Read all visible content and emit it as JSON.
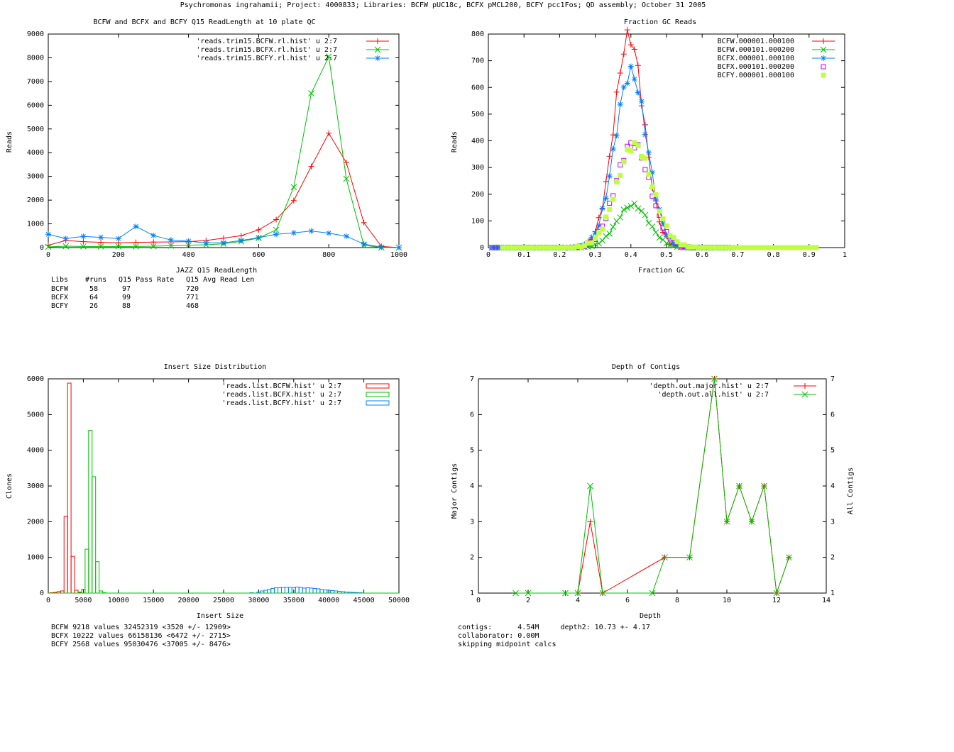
{
  "page_title": "Psychromonas ingrahamii; Project: 4000833; Libraries: BCFW pUC18c, BCFX pMCL200, BCFY pcc1Fos; QD assembly; October 31 2005",
  "colors": {
    "red": "#ff0000",
    "green": "#00c000",
    "blue": "#0080ff",
    "purple": "#c000ff",
    "lime": "#c0ff40"
  },
  "chart_data": [
    {
      "id": "readlen",
      "type": "line",
      "title": "BCFW and BCFX and BCFY Q15 ReadLength at 10 plate QC",
      "xlabel": "JAZZ Q15 ReadLength",
      "ylabel": "Reads",
      "xlim": [
        0,
        1000
      ],
      "ylim": [
        0,
        9000
      ],
      "xticks": [
        0,
        200,
        400,
        600,
        800,
        1000
      ],
      "yticks": [
        0,
        1000,
        2000,
        3000,
        4000,
        5000,
        6000,
        7000,
        8000,
        9000
      ],
      "x": [
        0,
        50,
        100,
        150,
        200,
        250,
        300,
        350,
        400,
        450,
        500,
        550,
        600,
        650,
        700,
        750,
        800,
        850,
        900,
        950,
        1000
      ],
      "series": [
        {
          "name": "'reads.trim15.BCFW.rl.hist' u 2:7",
          "color": "#ff0000",
          "marker": "plus",
          "values": [
            100,
            300,
            250,
            220,
            200,
            220,
            230,
            240,
            250,
            300,
            400,
            500,
            750,
            1180,
            1980,
            3420,
            4820,
            3580,
            1050,
            50,
            0
          ]
        },
        {
          "name": "'reads.trim15.BCFX.rl.hist' u 2:7",
          "color": "#00c000",
          "marker": "x",
          "values": [
            30,
            60,
            50,
            50,
            50,
            50,
            60,
            80,
            100,
            120,
            160,
            260,
            400,
            750,
            2550,
            6500,
            8050,
            2900,
            100,
            0,
            0
          ]
        },
        {
          "name": "'reads.trim15.BCFY.rl.hist' u 2:7",
          "color": "#0080ff",
          "marker": "star",
          "values": [
            560,
            380,
            470,
            430,
            380,
            890,
            510,
            320,
            270,
            200,
            200,
            300,
            420,
            560,
            620,
            700,
            610,
            480,
            150,
            20,
            0
          ]
        }
      ],
      "stats_header": [
        "Libs",
        "#runs",
        "Q15 Pass Rate",
        "Q15 Avg Read Len"
      ],
      "stats_rows": [
        [
          "BCFW",
          "58",
          "97",
          "720"
        ],
        [
          "BCFX",
          "64",
          "99",
          "771"
        ],
        [
          "BCFY",
          "26",
          "88",
          "468"
        ]
      ]
    },
    {
      "id": "gc",
      "type": "scatter",
      "title": "Fraction GC Reads",
      "xlabel": "Fraction GC",
      "ylabel": "Reads",
      "xlim": [
        0,
        1
      ],
      "ylim": [
        0,
        800
      ],
      "xticks": [
        "0",
        "0.1",
        "0.2",
        "0.3",
        "0.4",
        "0.5",
        "0.6",
        "0.7",
        "0.8",
        "0.9",
        "1"
      ],
      "yticks": [
        0,
        100,
        200,
        300,
        400,
        500,
        600,
        700,
        800
      ],
      "series": [
        {
          "name": "BCFW.000001.000100",
          "color": "#ff0000",
          "marker": "plus",
          "peak": 790,
          "center": 0.395,
          "width": 0.042,
          "line": true
        },
        {
          "name": "BCFW.000101.000200",
          "color": "#00c000",
          "marker": "x",
          "peak": 160,
          "center": 0.405,
          "width": 0.045,
          "line": true
        },
        {
          "name": "BCFX.000001.000100",
          "color": "#0080ff",
          "marker": "star",
          "peak": 655,
          "center": 0.4,
          "width": 0.045,
          "line": true
        },
        {
          "name": "BCFX.000101.000200",
          "color": "#c000ff",
          "marker": "box",
          "peak": 390,
          "center": 0.405,
          "width": 0.048,
          "line": false
        },
        {
          "name": "BCFY.000001.000100",
          "color": "#c0ff40",
          "marker": "filled-box",
          "peak": 385,
          "center": 0.41,
          "width": 0.05,
          "line": false
        }
      ]
    },
    {
      "id": "insert",
      "type": "bar",
      "title": "Insert Size Distribution",
      "xlabel": "Insert Size",
      "ylabel": "Clones",
      "xlim": [
        0,
        50000
      ],
      "ylim": [
        0,
        6000
      ],
      "xticks": [
        0,
        5000,
        10000,
        15000,
        20000,
        25000,
        30000,
        35000,
        40000,
        45000,
        50000
      ],
      "yticks": [
        0,
        1000,
        2000,
        3000,
        4000,
        5000,
        6000
      ],
      "series": [
        {
          "name": "'reads.list.BCFW.hist' u 2:7",
          "color": "#ff0000",
          "bins": [
            [
              500,
              10
            ],
            [
              1000,
              20
            ],
            [
              1500,
              40
            ],
            [
              2000,
              60
            ],
            [
              2500,
              2150
            ],
            [
              3000,
              5880
            ],
            [
              3500,
              1030
            ],
            [
              4000,
              80
            ],
            [
              4500,
              10
            ]
          ]
        },
        {
          "name": "'reads.list.BCFX.hist' u 2:7",
          "color": "#00c000",
          "bins": [
            [
              4500,
              30
            ],
            [
              5000,
              110
            ],
            [
              5500,
              1230
            ],
            [
              6000,
              4560
            ],
            [
              6500,
              3260
            ],
            [
              7000,
              880
            ],
            [
              7500,
              60
            ],
            [
              8000,
              10
            ]
          ]
        },
        {
          "name": "'reads.list.BCFY.hist' u 2:7",
          "color": "#0080ff",
          "bins": [
            [
              29000,
              10
            ],
            [
              30000,
              30
            ],
            [
              30500,
              60
            ],
            [
              31000,
              80
            ],
            [
              31500,
              100
            ],
            [
              32000,
              130
            ],
            [
              32500,
              150
            ],
            [
              33000,
              150
            ],
            [
              33500,
              160
            ],
            [
              34000,
              160
            ],
            [
              34500,
              160
            ],
            [
              35000,
              150
            ],
            [
              35500,
              170
            ],
            [
              36000,
              160
            ],
            [
              36500,
              140
            ],
            [
              37000,
              150
            ],
            [
              37500,
              140
            ],
            [
              38000,
              130
            ],
            [
              38500,
              120
            ],
            [
              39000,
              100
            ],
            [
              39500,
              90
            ],
            [
              40000,
              80
            ],
            [
              40500,
              70
            ],
            [
              41000,
              60
            ],
            [
              41500,
              50
            ],
            [
              42000,
              40
            ],
            [
              42500,
              30
            ],
            [
              43000,
              25
            ],
            [
              43500,
              20
            ],
            [
              44000,
              15
            ],
            [
              44500,
              10
            ]
          ]
        }
      ],
      "notes": [
        "BCFW 9218 values 32452319 <3520 +/- 12909>",
        "BCFX 10222 values 66158136 <6472 +/- 2715>",
        "BCFY 2568 values 95030476 <37005 +/- 8476>"
      ]
    },
    {
      "id": "depth",
      "type": "line",
      "title": "Depth of Contigs",
      "xlabel": "Depth",
      "ylabel": "Major Contigs",
      "y2label": "All Contigs",
      "xlim": [
        0,
        14
      ],
      "ylim": [
        1,
        7
      ],
      "xticks": [
        0,
        2,
        4,
        6,
        8,
        10,
        12,
        14
      ],
      "yticks": [
        1,
        2,
        3,
        4,
        5,
        6,
        7
      ],
      "series": [
        {
          "name": "'depth.out.major.hist' u 2:7",
          "color": "#ff0000",
          "marker": "plus",
          "x": [
            3.5,
            4,
            4.5,
            5,
            7.5,
            8.5,
            9.5,
            10,
            10.5,
            11,
            11.5,
            12,
            12.5
          ],
          "values": [
            1,
            1,
            3,
            1,
            2,
            2,
            7,
            3,
            4,
            3,
            4,
            1,
            2
          ]
        },
        {
          "name": "'depth.out.all.hist' u 2:7",
          "color": "#00c000",
          "marker": "x",
          "x": [
            1.5,
            2,
            3.5,
            4,
            4.5,
            5,
            7,
            7.5,
            8.5,
            9.5,
            10,
            10.5,
            11,
            11.5,
            12,
            12.5
          ],
          "values": [
            1,
            1,
            1,
            1,
            4,
            1,
            1,
            2,
            2,
            7,
            3,
            4,
            3,
            4,
            1,
            2
          ]
        }
      ],
      "notes": [
        "contigs:      4.54M     depth2: 10.73 +- 4.17",
        "collaborator: 0.00M",
        "skipping midpoint calcs"
      ]
    }
  ]
}
